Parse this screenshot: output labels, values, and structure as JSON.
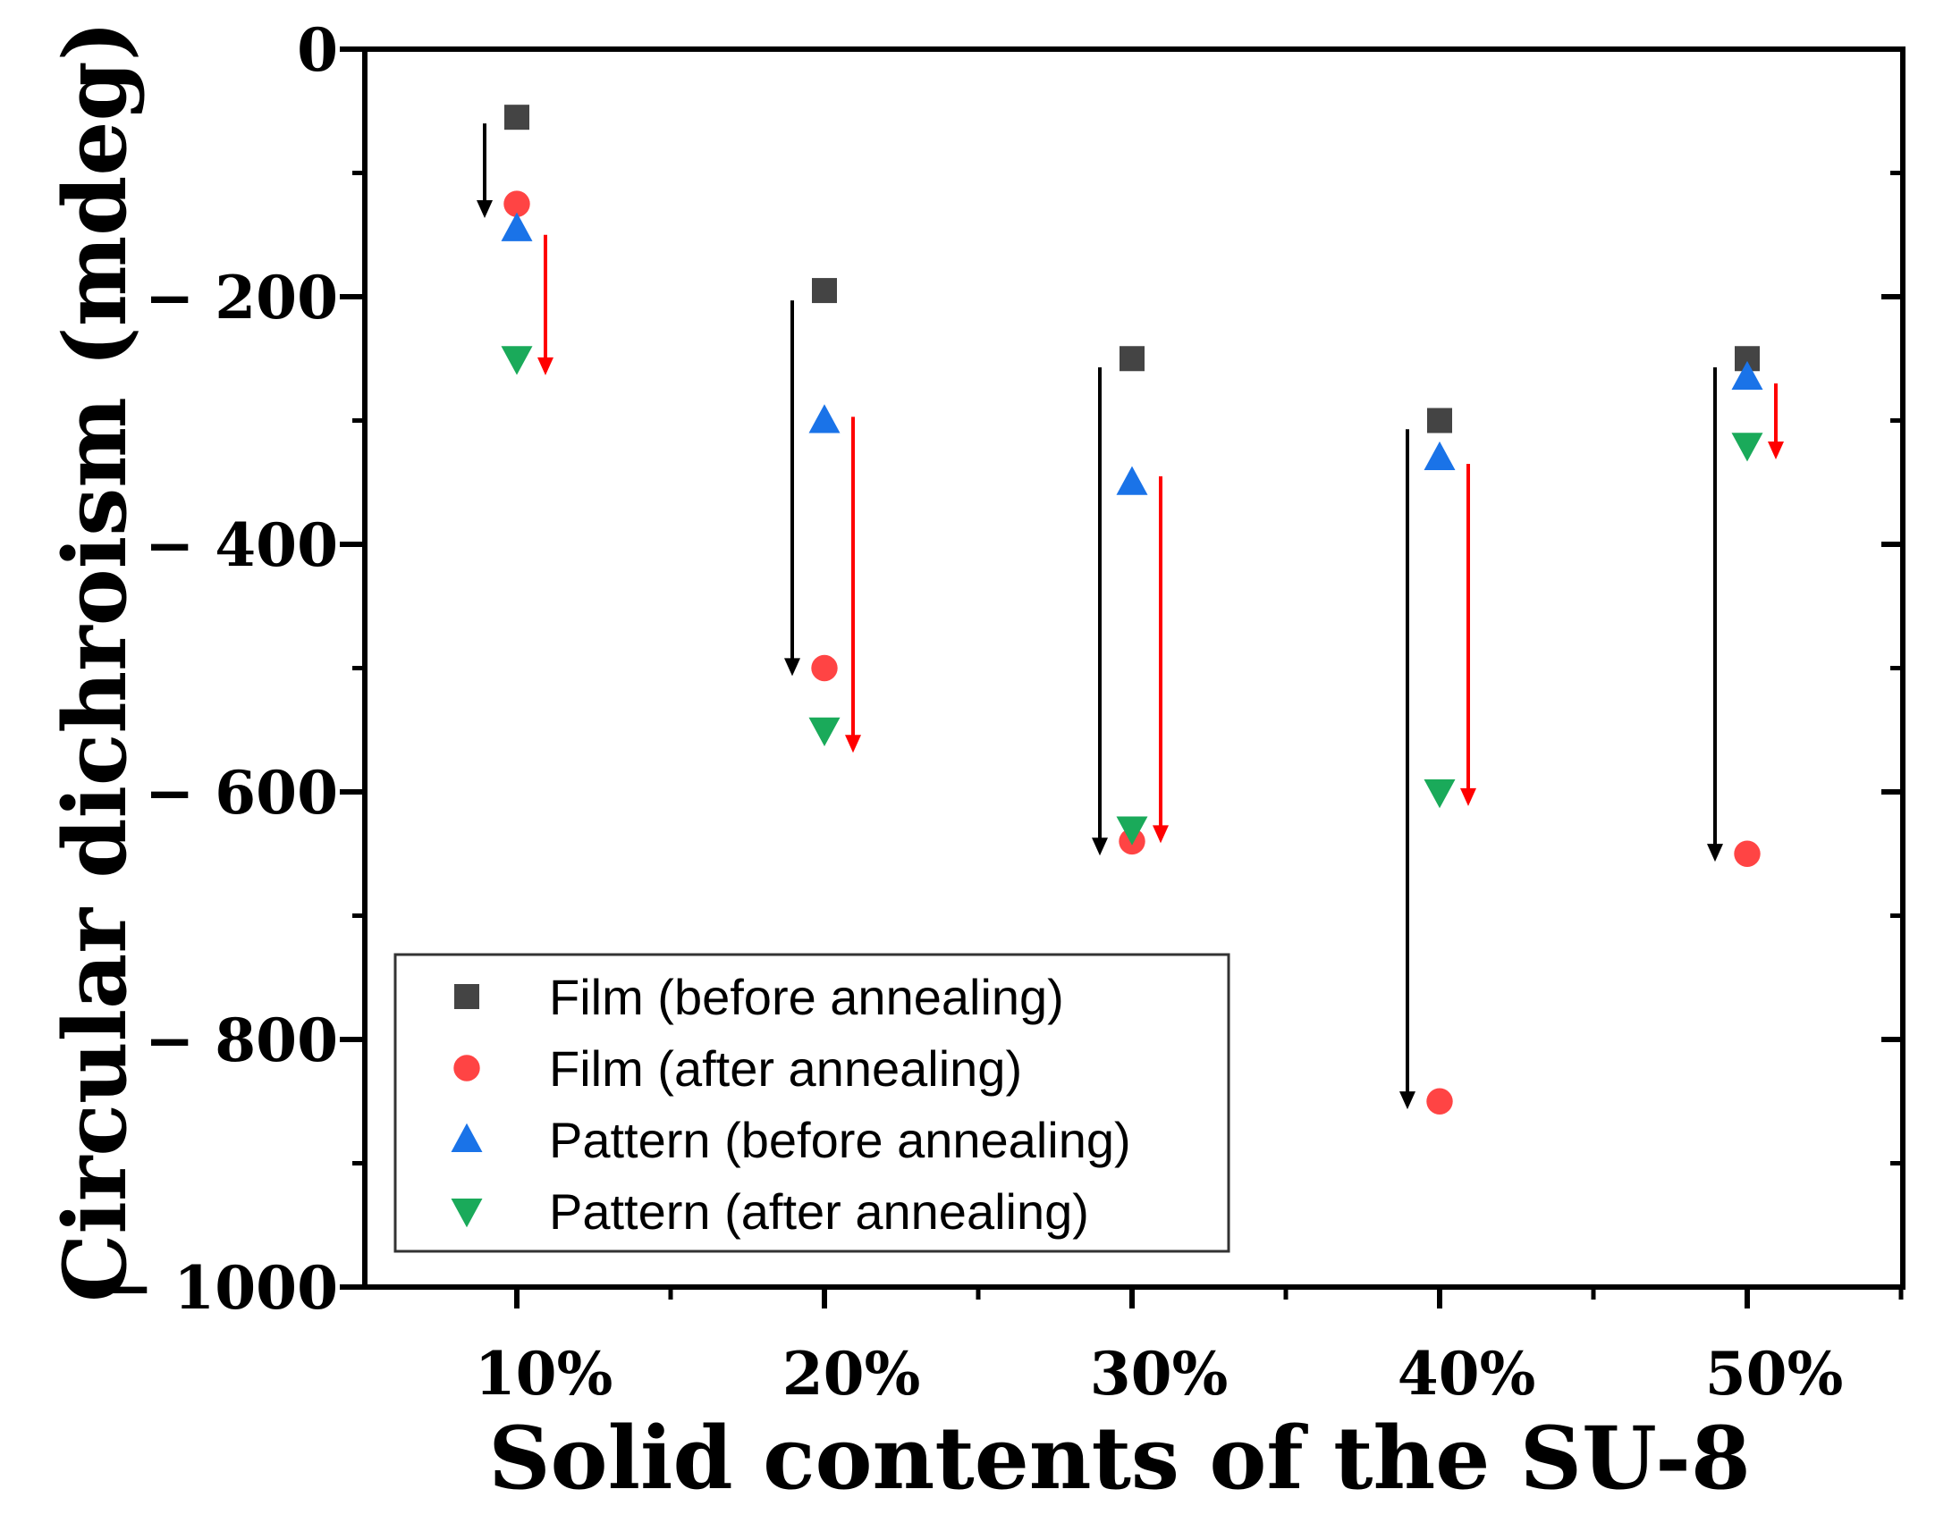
{
  "chart_data": {
    "type": "scatter",
    "xlabel": "Solid contents of the SU-8",
    "ylabel": "Circular dichroism (mdeg)",
    "categories": [
      "10%",
      "20%",
      "30%",
      "40%",
      "50%"
    ],
    "ylim": [
      -1000,
      0
    ],
    "yticks": [
      0,
      -200,
      -400,
      -600,
      -800,
      -1000
    ],
    "ytick_labels": [
      "0",
      "− 200",
      "− 400",
      "− 600",
      "− 800",
      "− 1000"
    ],
    "legend_position": "bottom-left",
    "series": [
      {
        "name": "Film (before annealing)",
        "marker": "square",
        "color": "#444444",
        "values": [
          -55,
          -195,
          -250,
          -300,
          -250
        ]
      },
      {
        "name": "Film (after annealing)",
        "marker": "circle",
        "color": "#ff4444",
        "values": [
          -125,
          -500,
          -640,
          -850,
          -650
        ]
      },
      {
        "name": "Pattern (before annealing)",
        "marker": "triangle-up",
        "color": "#1a73e8",
        "values": [
          -145,
          -300,
          -350,
          -330,
          -265
        ]
      },
      {
        "name": "Pattern (after annealing)",
        "marker": "triangle-down",
        "color": "#1aaa5a",
        "values": [
          -250,
          -550,
          -630,
          -600,
          -320
        ]
      }
    ],
    "arrows": [
      {
        "category": "10%",
        "color": "#000000",
        "from": -60,
        "to": -135,
        "side": "left"
      },
      {
        "category": "10%",
        "color": "#ff0000",
        "from": -150,
        "to": -262,
        "side": "right"
      },
      {
        "category": "20%",
        "color": "#000000",
        "from": -203,
        "to": -505,
        "side": "left"
      },
      {
        "category": "20%",
        "color": "#ff0000",
        "from": -297,
        "to": -567,
        "side": "right"
      },
      {
        "category": "30%",
        "color": "#000000",
        "from": -257,
        "to": -650,
        "side": "left"
      },
      {
        "category": "30%",
        "color": "#ff0000",
        "from": -345,
        "to": -640,
        "side": "right"
      },
      {
        "category": "40%",
        "color": "#000000",
        "from": -307,
        "to": -855,
        "side": "left"
      },
      {
        "category": "40%",
        "color": "#ff0000",
        "from": -335,
        "to": -610,
        "side": "right"
      },
      {
        "category": "50%",
        "color": "#000000",
        "from": -257,
        "to": -655,
        "side": "left"
      },
      {
        "category": "50%",
        "color": "#ff0000",
        "from": -270,
        "to": -330,
        "side": "right"
      }
    ]
  }
}
